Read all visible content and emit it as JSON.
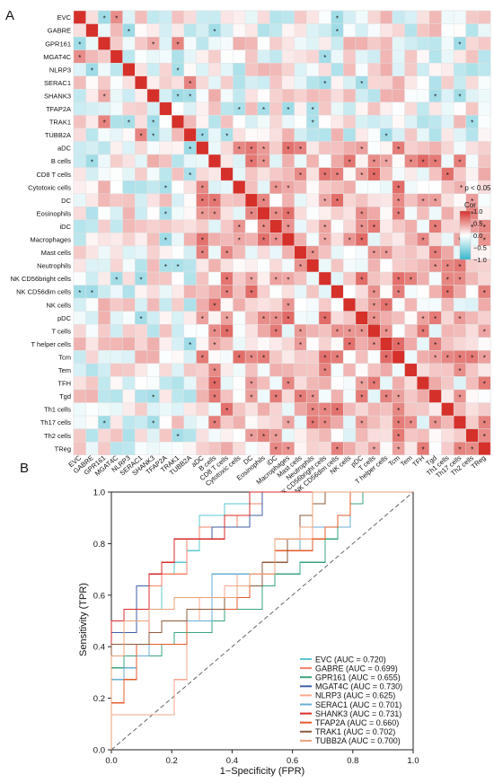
{
  "panels": {
    "a": "A",
    "b": "B"
  },
  "chart_data": [
    {
      "type": "heatmap",
      "panel": "A",
      "variables": [
        "EVC",
        "GABRE",
        "GPR161",
        "MGAT4C",
        "NLRP3",
        "SERAC1",
        "SHANK3",
        "TFAP2A",
        "TRAK1",
        "TUBB2A",
        "aDC",
        "B cells",
        "CD8 T cells",
        "Cytotoxic cells",
        "DC",
        "Eosinophils",
        "iDC",
        "Macrophages",
        "Mast cells",
        "Neutrophils",
        "NK CD56bright cells",
        "NK CD56dim cells",
        "NK cells",
        "pDC",
        "T cells",
        "T helper cells",
        "Tcm",
        "Tem",
        "TFH",
        "Tgd",
        "Th1 cells",
        "Th17 cells",
        "Th2 cells",
        "TReg"
      ],
      "layout": "lower-triangle-diagonal",
      "significance_note": "* p < 0.05",
      "legend": {
        "title": "Cor",
        "ticks": [
          "1.0",
          "0.5",
          "0.0",
          "−0.5",
          "−1.0"
        ],
        "min": -1,
        "max": 1,
        "colors": {
          "neg": "#38b6cc",
          "zero": "#ffffff",
          "pos": "#d6302a"
        }
      }
    },
    {
      "type": "line",
      "panel": "B",
      "xlabel": "1−Specificity (FPR)",
      "ylabel": "Sensitivity (TPR)",
      "xlim": [
        0,
        1
      ],
      "ylim": [
        0,
        1
      ],
      "xticks": [
        "0.0",
        "0.2",
        "0.4",
        "0.6",
        "0.8",
        "1.0"
      ],
      "yticks": [
        "0.0",
        "0.2",
        "0.4",
        "0.6",
        "0.8",
        "1.0"
      ],
      "legend_position": "bottom-right",
      "reference_line": "diagonal-dashed",
      "series": [
        {
          "name": "EVC (AUC = 0.720)",
          "color": "#5bc9d0",
          "auc": 0.72
        },
        {
          "name": "GABRE (AUC = 0.699)",
          "color": "#f4846b",
          "auc": 0.699
        },
        {
          "name": "GPR161 (AUC = 0.655)",
          "color": "#3aa57c",
          "auc": 0.655
        },
        {
          "name": "MGAT4C (AUC = 0.730)",
          "color": "#3f5fa6",
          "auc": 0.73
        },
        {
          "name": "NLRP3 (AUC = 0.625)",
          "color": "#f7a78e",
          "auc": 0.625
        },
        {
          "name": "SERAC1 (AUC = 0.701)",
          "color": "#6aaed6",
          "auc": 0.701
        },
        {
          "name": "SHANK3 (AUC = 0.731)",
          "color": "#d92b2b",
          "auc": 0.731
        },
        {
          "name": "TFAP2A (AUC = 0.660)",
          "color": "#e65b2c",
          "auc": 0.66
        },
        {
          "name": "TRAK1 (AUC = 0.702)",
          "color": "#8c5a3c",
          "auc": 0.702
        },
        {
          "name": "TUBB2A (AUC = 0.700)",
          "color": "#e8a07a",
          "auc": 0.7
        }
      ]
    }
  ]
}
